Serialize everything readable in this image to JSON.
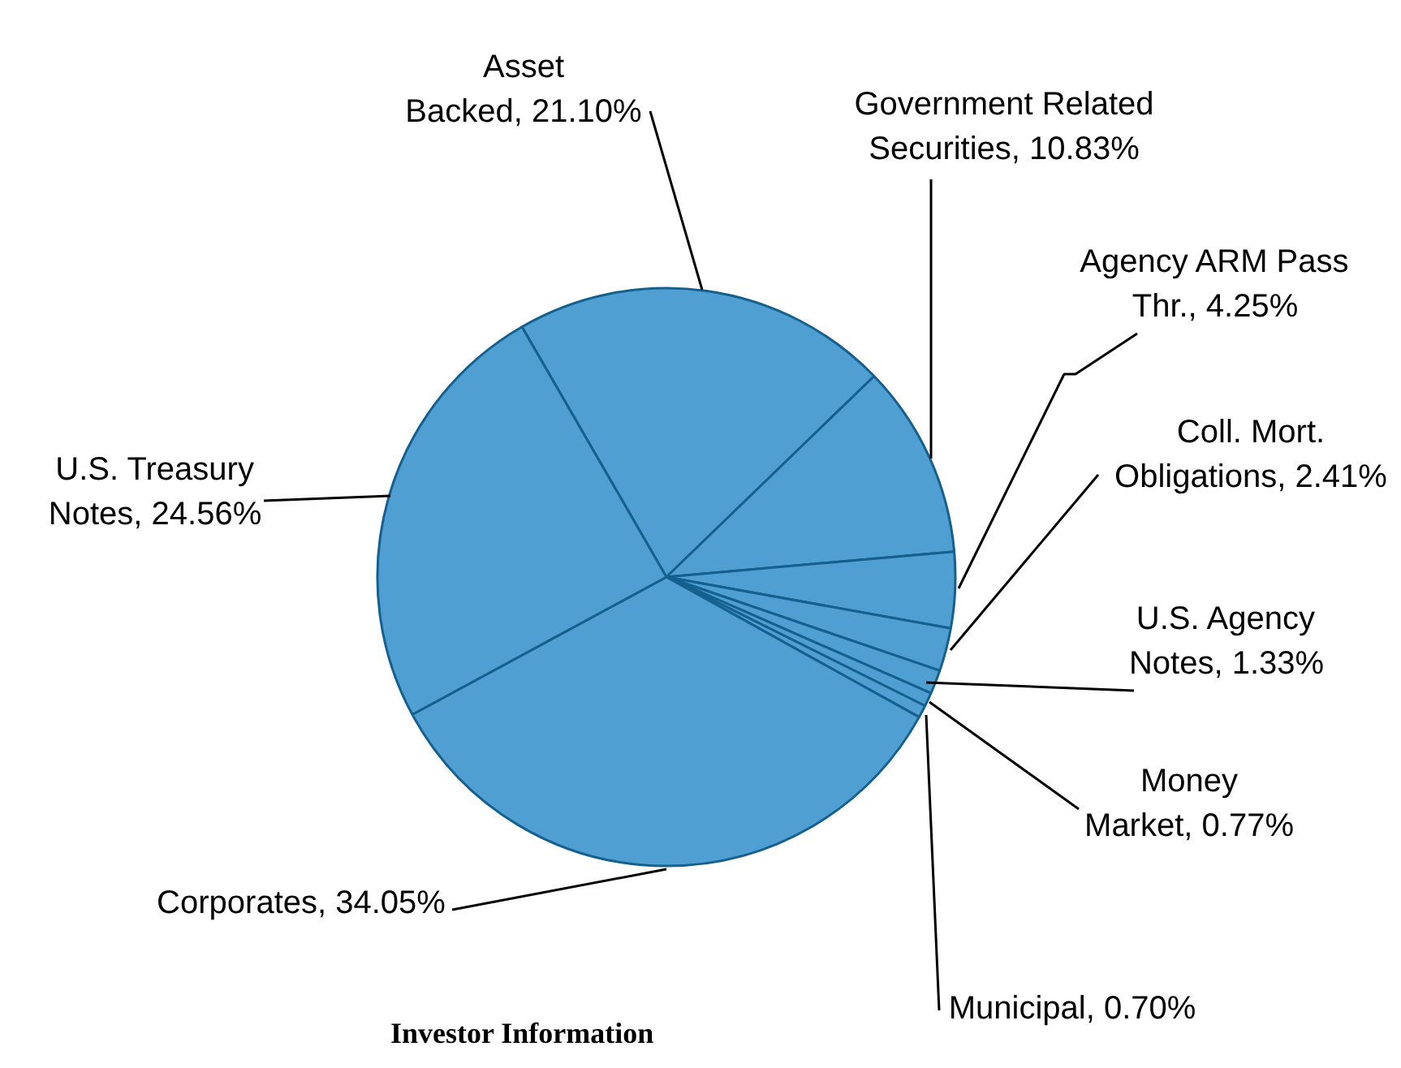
{
  "chart_data": {
    "type": "pie",
    "categories": [
      "Asset Backed",
      "Government Related Securities",
      "Agency ARM Pass Thr.",
      "Coll. Mort. Obligations",
      "U.S. Agency Notes",
      "Money Market",
      "Municipal",
      "Corporates",
      "U.S. Treasury Notes"
    ],
    "value_labels": [
      "21.10%",
      "10.83%",
      "4.25%",
      "2.41%",
      "1.33%",
      "0.77%",
      "0.70%",
      "34.05%",
      "24.56%"
    ],
    "values": [
      21.1,
      10.83,
      4.25,
      2.41,
      1.33,
      0.77,
      0.7,
      34.05,
      24.56
    ],
    "colors": [
      "#4f9fd2",
      "#4f9fd2",
      "#4f9fd2",
      "#4f9fd2",
      "#4f9fd2",
      "#4f9fd2",
      "#4f9fd2",
      "#4f9fd2",
      "#4f9fd2"
    ],
    "annotations": [
      "Investor Information"
    ]
  }
}
